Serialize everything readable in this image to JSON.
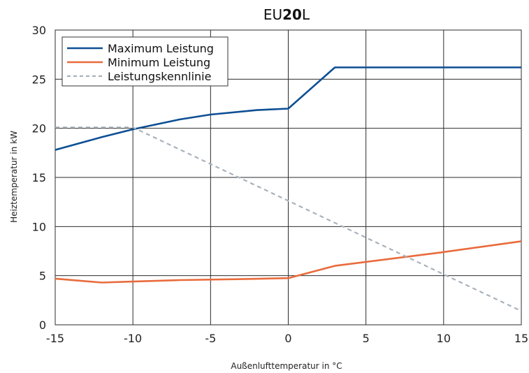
{
  "chart_data": {
    "type": "line",
    "title": {
      "prefix": "EU",
      "bold": "20",
      "suffix": "L"
    },
    "xlabel": "Außenlufttemperatur in °C",
    "ylabel": "Heiztemperatur in kW",
    "xlim": [
      -15,
      15
    ],
    "ylim": [
      0,
      30
    ],
    "xticks": [
      -15,
      -10,
      -5,
      0,
      5,
      10,
      15
    ],
    "yticks": [
      0,
      5,
      10,
      15,
      20,
      25,
      30
    ],
    "grid": true,
    "legend_position": "top-left",
    "series": [
      {
        "name": "Maximum Leistung",
        "color": "#0d4f94",
        "style": "solid",
        "x": [
          -15,
          -12,
          -10,
          -7,
          -5,
          -2,
          0,
          3,
          15
        ],
        "y": [
          17.8,
          19.1,
          19.9,
          20.9,
          21.4,
          21.85,
          22,
          26.2,
          26.2
        ]
      },
      {
        "name": "Minimum Leistung",
        "color": "#e96b3c",
        "style": "solid",
        "x": [
          -15,
          -12,
          -10,
          -7,
          -3,
          0,
          3,
          10,
          15
        ],
        "y": [
          4.7,
          4.3,
          4.4,
          4.55,
          4.65,
          4.75,
          6,
          7.4,
          8.5
        ]
      },
      {
        "name": "Leistungskennlinie",
        "color": "#a8b2bb",
        "style": "dashed",
        "x": [
          -15,
          -10,
          15
        ],
        "y": [
          20.1,
          20.1,
          1.4
        ]
      }
    ]
  }
}
